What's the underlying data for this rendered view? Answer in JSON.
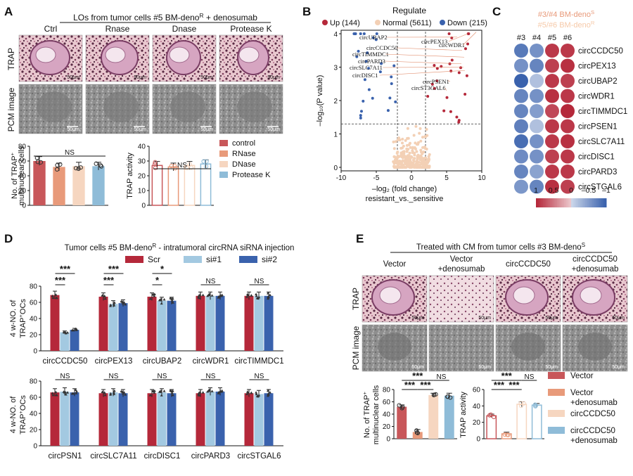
{
  "panel_letters": {
    "A": "A",
    "B": "B",
    "C": "C",
    "D": "D",
    "E": "E"
  },
  "panelA": {
    "title_pre": "LOs from tumor cells #5 BM-deno",
    "title_sup": "R",
    "title_post": " + denosumab",
    "conditions": [
      "Ctrl",
      "Rnase",
      "Dnase",
      "Protease K"
    ],
    "row_labels": [
      "TRAP",
      "PCM image"
    ],
    "scalebar": "50μm",
    "legend": [
      "control",
      "RNase",
      "DNase",
      "Protease K"
    ],
    "colors": [
      "#c8575a",
      "#e89a7a",
      "#f6d6c0",
      "#8fbcd8"
    ]
  },
  "panelB_labels": [
    "circUBAP2",
    "circCCDC50",
    "circTIMMDC1",
    "circPARD3",
    "circSLC7A11",
    "circDISC1",
    "circPEX13",
    "circWDR1",
    "circPSEN1",
    "circST3GAL6"
  ],
  "panelC": {
    "legend_line1_pre": "#3/#4 BM-deno",
    "legend_line1_sup": "S",
    "legend_line2_pre": "#5/#6 BM-deno",
    "legend_line2_sup": "R",
    "columns": [
      "#3",
      "#4",
      "#5",
      "#6"
    ],
    "genes": [
      "circCCDC50",
      "circPEX13",
      "circUBAP2",
      "circWDR1",
      "circTIMMDC1",
      "circPSEN1",
      "circSLC7A11",
      "circDISC1",
      "circPARD3",
      "circSTGAL6"
    ],
    "values": [
      [
        -0.8,
        -0.6,
        0.9,
        0.9
      ],
      [
        -0.6,
        -0.7,
        0.85,
        0.95
      ],
      [
        -1.0,
        -0.2,
        0.9,
        0.85
      ],
      [
        -0.7,
        -0.6,
        0.95,
        0.9
      ],
      [
        -0.7,
        -0.5,
        0.8,
        1.0
      ],
      [
        -0.75,
        -0.2,
        0.9,
        0.9
      ],
      [
        -0.9,
        -0.6,
        0.9,
        0.95
      ],
      [
        -0.65,
        -0.6,
        0.85,
        0.9
      ],
      [
        -0.7,
        -0.45,
        0.9,
        0.9
      ],
      [
        -0.55,
        -0.7,
        0.95,
        0.85
      ]
    ],
    "scale_ticks": [
      "1",
      "0.5",
      "0",
      "–0.5",
      "–1"
    ]
  },
  "panelD": {
    "title": "Tumor cells #5 BM-deno",
    "title_sup": "R",
    "title_post": " - intratumoral circRNA siRNA injection",
    "legend": [
      "Scr",
      "si#1",
      "si#2"
    ],
    "colors": [
      "#b5283a",
      "#a3c9e1",
      "#3a62ad"
    ],
    "ylabel_line1": "4 w-NO. of",
    "ylabel_line2": "TRAP",
    "ylabel_sup": "+",
    "ylabel_post": "OCs",
    "yticks": [
      "0",
      "20",
      "40",
      "60",
      "80"
    ],
    "top_genes": [
      "circCCDC50",
      "circPEX13",
      "circUBAP2",
      "circWDR1",
      "circTIMMDC1"
    ],
    "bottom_genes": [
      "circPSN1",
      "circSLC7A11",
      "circDISC1",
      "circPARD3",
      "circSTGAL6"
    ],
    "top_sig": [
      [
        "***",
        "***"
      ],
      [
        "***",
        "***"
      ],
      [
        "*",
        "*"
      ],
      [
        "NS"
      ],
      [
        "NS"
      ]
    ],
    "bottom_sig": [
      [
        "NS"
      ],
      [
        "NS"
      ],
      [
        "NS"
      ],
      [
        "NS"
      ],
      [
        "NS"
      ]
    ]
  },
  "panelE": {
    "title_pre": "Treated with CM from tumor cells #3 BM-deno",
    "title_sup": "S",
    "conditions": [
      "Vector",
      "Vector\n+denosumab",
      "circCCDC50",
      "circCCDC50\n+denosumab"
    ],
    "legend": [
      "Vector",
      "Vector\n+denosumab",
      "circCCDC50",
      "circCCDC50\n+denosumab"
    ],
    "colors": [
      "#c8575a",
      "#e89a7a",
      "#f6d6c0",
      "#8fbcd8"
    ],
    "sig_bars": [
      "***",
      "***",
      "***",
      "NS"
    ]
  },
  "chart_data": [
    {
      "type": "bar",
      "panel": "A-left",
      "categories": [
        "control",
        "RNase",
        "DNase",
        "Protease K"
      ],
      "values": [
        60,
        52,
        53,
        53
      ],
      "ylabel": "No. of TRAP⁺ multinuclear cells",
      "ylim": [
        0,
        80
      ],
      "yticks": [
        0,
        20,
        40,
        60,
        80
      ],
      "significance": "NS"
    },
    {
      "type": "bar",
      "panel": "A-right",
      "categories": [
        "control",
        "RNase",
        "DNase",
        "Protease K"
      ],
      "values": [
        27,
        26,
        27,
        28
      ],
      "ylabel": "TRAP activity",
      "ylim": [
        0,
        40
      ],
      "yticks": [
        0,
        10,
        20,
        30,
        40
      ],
      "significance": "NS"
    },
    {
      "type": "scatter",
      "panel": "B",
      "title": "Regulate",
      "series": [
        {
          "name": "Up (144)",
          "color": "#b5283a"
        },
        {
          "name": "Normal (5611)",
          "color": "#f3d0b5"
        },
        {
          "name": "Down (215)",
          "color": "#3a62ad"
        }
      ],
      "xlabel": "–log₂ (fold change)",
      "xlabel_sub": "resistant_vs._sensitive",
      "ylabel": "–log₁₀(P value)",
      "xlim": [
        -10,
        10
      ],
      "ylim": [
        0,
        4
      ],
      "xticks": [
        -10,
        -5,
        0,
        5,
        10
      ],
      "yticks": [
        0,
        1,
        2,
        3,
        4
      ]
    },
    {
      "type": "bar",
      "panel": "D-top",
      "categories": [
        "circCCDC50",
        "circPEX13",
        "circUBAP2",
        "circWDR1",
        "circTIMMDC1"
      ],
      "series": [
        {
          "name": "Scr",
          "values": [
            69,
            67,
            67,
            68,
            68
          ]
        },
        {
          "name": "si#1",
          "values": [
            23,
            58,
            62,
            68,
            68
          ]
        },
        {
          "name": "si#2",
          "values": [
            26,
            59,
            62,
            68,
            68
          ]
        }
      ],
      "ylim": [
        0,
        80
      ]
    },
    {
      "type": "bar",
      "panel": "D-bottom",
      "categories": [
        "circPSN1",
        "circSLC7A11",
        "circDISC1",
        "circPARD3",
        "circSTGAL6"
      ],
      "series": [
        {
          "name": "Scr",
          "values": [
            66,
            65,
            65,
            65,
            65
          ]
        },
        {
          "name": "si#1",
          "values": [
            67,
            66,
            66,
            67,
            64
          ]
        },
        {
          "name": "si#2",
          "values": [
            66,
            65,
            65,
            67,
            65
          ]
        }
      ],
      "ylim": [
        0,
        80
      ]
    },
    {
      "type": "bar",
      "panel": "E-left",
      "categories": [
        "Vector",
        "Vector +denosumab",
        "circCCDC50",
        "circCCDC50 +denosumab"
      ],
      "values": [
        52,
        11,
        71,
        70
      ],
      "ylabel": "No. of TRAP⁺ multinuclear cells",
      "ylim": [
        0,
        80
      ],
      "yticks": [
        0,
        20,
        40,
        60,
        80
      ]
    },
    {
      "type": "bar",
      "panel": "E-right",
      "categories": [
        "Vector",
        "Vector +denosumab",
        "circCCDC50",
        "circCCDC50 +denosumab"
      ],
      "values": [
        28,
        6,
        42,
        41
      ],
      "ylabel": "TRAP activity",
      "ylim": [
        0,
        60
      ],
      "yticks": [
        0,
        20,
        40,
        60
      ]
    }
  ]
}
